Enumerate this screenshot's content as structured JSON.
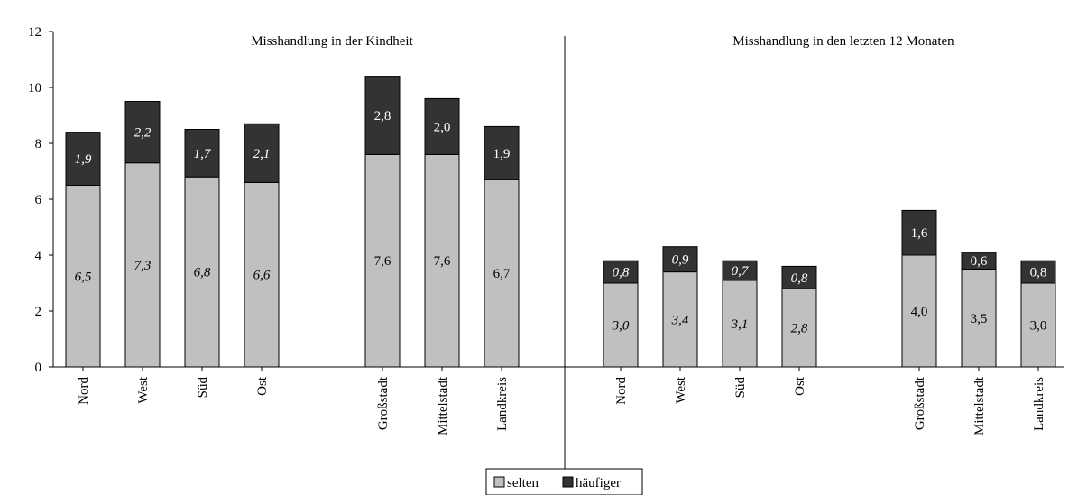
{
  "chart_data": {
    "type": "bar",
    "stacked": true,
    "ylim": [
      0,
      12
    ],
    "yticks": [
      "0",
      "2",
      "4",
      "6",
      "8",
      "10",
      "12"
    ],
    "ytick_values": [
      0,
      2,
      4,
      6,
      8,
      10,
      12
    ],
    "grid": false,
    "legend_position": "bottom-center",
    "colors": {
      "selten": "#c0c0c0",
      "haeufiger": "#333333"
    },
    "legend": [
      {
        "key": "selten",
        "label": "selten"
      },
      {
        "key": "haeufiger",
        "label": "häufiger"
      }
    ],
    "panels": [
      {
        "title": "Misshandlung in der Kindheit",
        "groups": [
          {
            "italic": true,
            "categories": [
              "Nord",
              "West",
              "Süd",
              "Ost"
            ],
            "series": [
              {
                "key": "selten",
                "values": [
                  6.5,
                  7.3,
                  6.8,
                  6.6
                ],
                "labels": [
                  "6,5",
                  "7,3",
                  "6,8",
                  "6,6"
                ]
              },
              {
                "key": "haeufiger",
                "values": [
                  1.9,
                  2.2,
                  1.7,
                  2.1
                ],
                "labels": [
                  "1,9",
                  "2,2",
                  "1,7",
                  "2,1"
                ]
              }
            ]
          },
          {
            "italic": false,
            "categories": [
              "Großstadt",
              "Mittelstadt",
              "Landkreis"
            ],
            "series": [
              {
                "key": "selten",
                "values": [
                  7.6,
                  7.6,
                  6.7
                ],
                "labels": [
                  "7,6",
                  "7,6",
                  "6,7"
                ]
              },
              {
                "key": "haeufiger",
                "values": [
                  2.8,
                  2.0,
                  1.9
                ],
                "labels": [
                  "2,8",
                  "2,0",
                  "1,9"
                ]
              }
            ]
          }
        ]
      },
      {
        "title": "Misshandlung in den letzten 12 Monaten",
        "groups": [
          {
            "italic": true,
            "categories": [
              "Nord",
              "West",
              "Süd",
              "Ost"
            ],
            "series": [
              {
                "key": "selten",
                "values": [
                  3.0,
                  3.4,
                  3.1,
                  2.8
                ],
                "labels": [
                  "3,0",
                  "3,4",
                  "3,1",
                  "2,8"
                ]
              },
              {
                "key": "haeufiger",
                "values": [
                  0.8,
                  0.9,
                  0.7,
                  0.8
                ],
                "labels": [
                  "0,8",
                  "0,9",
                  "0,7",
                  "0,8"
                ]
              }
            ]
          },
          {
            "italic": false,
            "categories": [
              "Großstadt",
              "Mittelstadt",
              "Landkreis"
            ],
            "series": [
              {
                "key": "selten",
                "values": [
                  4.0,
                  3.5,
                  3.0
                ],
                "labels": [
                  "4,0",
                  "3,5",
                  "3,0"
                ]
              },
              {
                "key": "haeufiger",
                "values": [
                  1.6,
                  0.6,
                  0.8
                ],
                "labels": [
                  "1,6",
                  "0,6",
                  "0,8"
                ]
              }
            ]
          }
        ]
      }
    ]
  }
}
